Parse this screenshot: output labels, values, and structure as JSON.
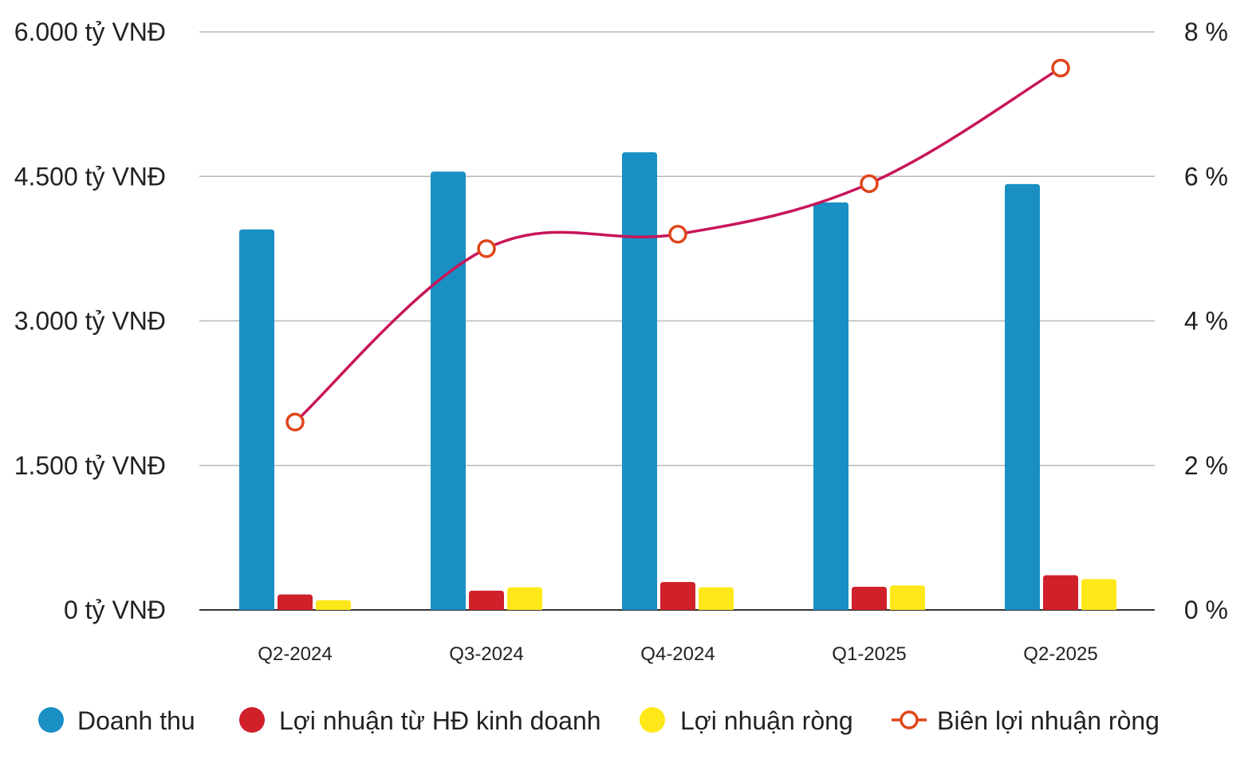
{
  "chart_data": {
    "type": "bar",
    "categories": [
      "Q2-2024",
      "Q3-2024",
      "Q4-2024",
      "Q1-2025",
      "Q2-2025"
    ],
    "series": [
      {
        "name": "Doanh thu",
        "kind": "bar",
        "axis": "left",
        "color": "#1a8fc4",
        "values": [
          3950,
          4550,
          4750,
          4230,
          4420
        ]
      },
      {
        "name": "Lợi nhuận từ HĐ kinh doanh",
        "kind": "bar",
        "axis": "left",
        "color": "#d0202a",
        "values": [
          160,
          200,
          290,
          240,
          360
        ]
      },
      {
        "name": "Lợi nhuận ròng",
        "kind": "bar",
        "axis": "left",
        "color": "#ffe81a",
        "values": [
          100,
          235,
          235,
          255,
          320
        ]
      },
      {
        "name": "Biên lợi nhuận ròng",
        "kind": "line",
        "axis": "right",
        "color": "#c8155a",
        "marker_color": "#e0451a",
        "values": [
          2.6,
          5.0,
          5.2,
          5.9,
          7.5
        ]
      }
    ],
    "y_left": {
      "ylim": [
        0,
        6000
      ],
      "ticks": [
        0,
        1500,
        3000,
        4500,
        6000
      ],
      "tick_labels": [
        "0 tỷ VNĐ",
        "1.500 tỷ VNĐ",
        "3.000 tỷ VNĐ",
        "4.500 tỷ VNĐ",
        "6.000 tỷ VNĐ"
      ]
    },
    "y_right": {
      "ylim": [
        0,
        8
      ],
      "ticks": [
        0,
        2,
        4,
        6,
        8
      ],
      "tick_labels": [
        "0 %",
        "2 %",
        "4 %",
        "6 %",
        "8 %"
      ]
    },
    "grid": true,
    "legend_position": "bottom"
  }
}
